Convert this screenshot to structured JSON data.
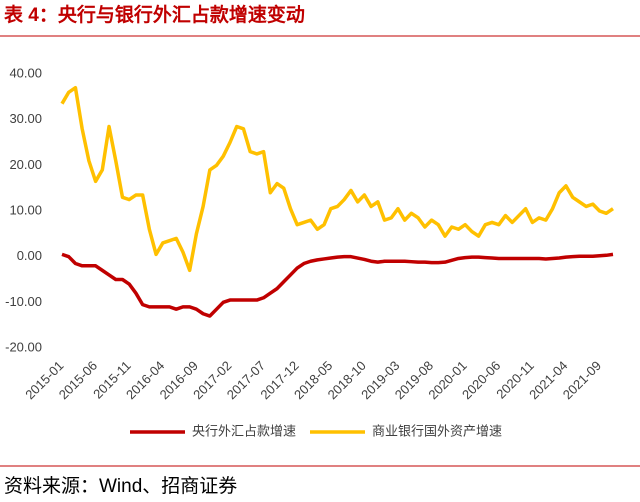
{
  "chart_data": {
    "type": "line",
    "title": "表 4：央行与银行外汇占款增速变动",
    "source": "资料来源：Wind、招商证券",
    "categories": [
      "2015-01",
      null,
      null,
      null,
      null,
      "2015-06",
      null,
      null,
      null,
      null,
      "2015-11",
      null,
      null,
      null,
      null,
      "2016-04",
      null,
      null,
      null,
      null,
      "2016-09",
      null,
      null,
      null,
      null,
      "2017-02",
      null,
      null,
      null,
      null,
      "2017-07",
      null,
      null,
      null,
      null,
      "2017-12",
      null,
      null,
      null,
      null,
      "2018-05",
      null,
      null,
      null,
      null,
      "2018-10",
      null,
      null,
      null,
      null,
      "2019-03",
      null,
      null,
      null,
      null,
      "2019-08",
      null,
      null,
      null,
      null,
      "2020-01",
      null,
      null,
      null,
      null,
      "2020-06",
      null,
      null,
      null,
      null,
      "2020-11",
      null,
      null,
      null,
      null,
      "2021-04",
      null,
      null,
      null,
      null,
      "2021-09",
      null,
      null
    ],
    "series": [
      {
        "name": "央行外汇占款增速",
        "color": "#c00000",
        "values": [
          0.5,
          0,
          -1.5,
          -2,
          -2,
          -2,
          -3,
          -4,
          -5,
          -5,
          -6,
          -8,
          -10.5,
          -11,
          -11,
          -11,
          -11,
          -11.5,
          -11,
          -11,
          -11.5,
          -12.5,
          -13,
          -11.5,
          -10,
          -9.5,
          -9.5,
          -9.5,
          -9.5,
          -9.5,
          -9,
          -8,
          -7,
          -5.5,
          -4,
          -2.5,
          -1.5,
          -1,
          -0.7,
          -0.5,
          -0.3,
          -0.1,
          0,
          0,
          -0.3,
          -0.6,
          -1,
          -1.2,
          -1,
          -1,
          -1,
          -1,
          -1.1,
          -1.2,
          -1.2,
          -1.3,
          -1.3,
          -1.2,
          -0.8,
          -0.4,
          -0.2,
          -0.1,
          -0.1,
          -0.2,
          -0.3,
          -0.4,
          -0.4,
          -0.4,
          -0.4,
          -0.4,
          -0.4,
          -0.4,
          -0.5,
          -0.4,
          -0.3,
          -0.1,
          0,
          0.1,
          0.1,
          0.1,
          0.2,
          0.3,
          0.5
        ]
      },
      {
        "name": "商业银行国外资产增速",
        "color": "#ffc000",
        "values": [
          33.5,
          36,
          37,
          28,
          21,
          16.5,
          19,
          28.5,
          21,
          13,
          12.5,
          13.5,
          13.5,
          6,
          0.5,
          3,
          3.5,
          4,
          1,
          -3,
          5,
          11,
          19,
          20,
          22,
          25,
          28.5,
          28,
          23,
          22.5,
          23,
          14,
          16,
          15,
          10.5,
          7,
          7.5,
          8,
          6,
          7,
          10.5,
          11,
          12.5,
          14.5,
          12,
          13.5,
          11,
          12,
          8,
          8.5,
          10.5,
          8,
          9.5,
          8.5,
          6.5,
          8,
          7,
          4.5,
          6.5,
          6,
          7,
          5.5,
          4.5,
          7,
          7.5,
          7,
          9,
          7.5,
          9,
          10.5,
          7.5,
          8.5,
          8,
          10.5,
          14,
          15.5,
          13,
          12,
          11,
          11.5,
          10,
          9.5,
          10.5
        ]
      }
    ],
    "ylim": [
      -20,
      40
    ],
    "yticks": [
      {
        "value": -20,
        "label": "-20.00"
      },
      {
        "value": -10,
        "label": "-10.00"
      },
      {
        "value": 0,
        "label": "0.00"
      },
      {
        "value": 10,
        "label": "10.00"
      },
      {
        "value": 20,
        "label": "20.00"
      },
      {
        "value": 30,
        "label": "30.00"
      },
      {
        "value": 40,
        "label": "40.00"
      }
    ],
    "grid": false,
    "legend": "bottom"
  }
}
